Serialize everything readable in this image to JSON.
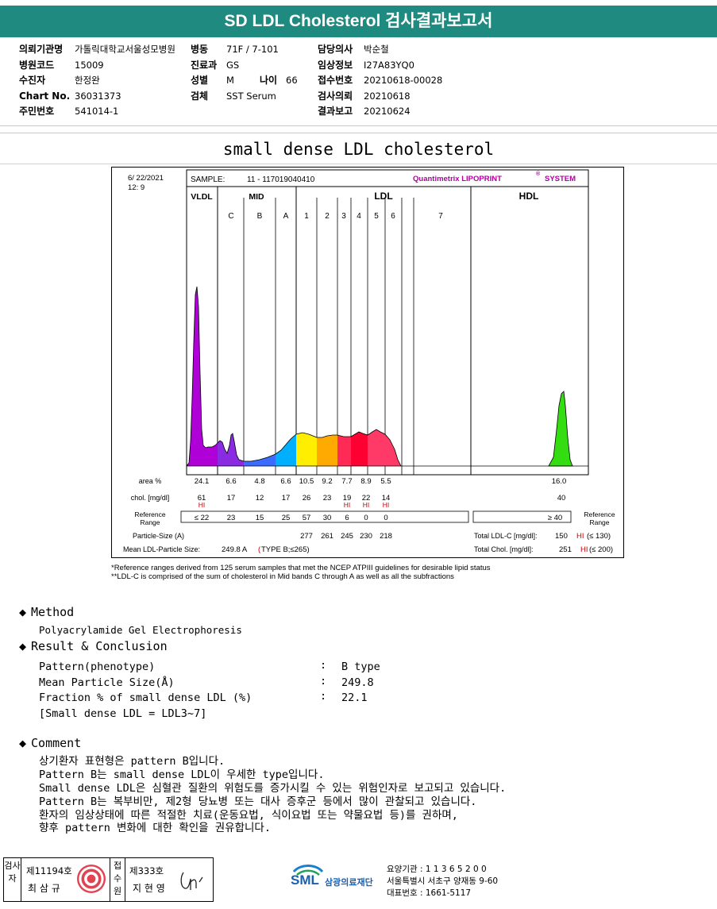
{
  "header": {
    "title": "SD LDL Cholesterol 검사결과보고서"
  },
  "info": {
    "col1": [
      {
        "label": "의뢰기관명",
        "value": "가톨릭대학교서울성모병원"
      },
      {
        "label": "병원코드",
        "value": "15009"
      },
      {
        "label": "수진자",
        "value": "한정완"
      },
      {
        "label": "Chart No.",
        "value": "36031373"
      },
      {
        "label": "주민번호",
        "value": "541014-1"
      }
    ],
    "col2": [
      {
        "label": "병동",
        "value": "71F / 7-101"
      },
      {
        "label": "진료과",
        "value": "GS"
      },
      {
        "label": "성별",
        "value": "M"
      },
      {
        "label": "검체",
        "value": "SST Serum"
      }
    ],
    "age_label": "나이",
    "age_value": "66",
    "col3": [
      {
        "label": "담당의사",
        "value": "박순철"
      },
      {
        "label": "임상정보",
        "value": "I27A83YQ0"
      },
      {
        "label": "접수번호",
        "value": "20210618-00028"
      },
      {
        "label": "검사의뢰",
        "value": "20210618"
      },
      {
        "label": "결과보고",
        "value": "20210624"
      }
    ]
  },
  "subtitle": "small dense LDL cholesterol",
  "chart_data": {
    "type": "area",
    "date": "6/ 22/2021",
    "time": "12: 9",
    "sample_label": "SAMPLE:",
    "sample_id": "11 - 117019040410",
    "brand": "Quantimetrix LIPOPRINT",
    "brand_mark": "®",
    "brand_suffix": "SYSTEM",
    "groups": [
      "VLDL",
      "MID",
      "LDL",
      "HDL"
    ],
    "bands": [
      "C",
      "B",
      "A",
      "1",
      "2",
      "3",
      "4",
      "5",
      "6",
      "7"
    ],
    "rows": {
      "area_label": "area %",
      "area_values": [
        "24.1",
        "6.6",
        "4.8",
        "6.6",
        "10.5",
        "9.2",
        "7.7",
        "8.9",
        "5.5"
      ],
      "hdl_area": "16.0",
      "chol_label": "chol. [mg/dl]",
      "chol_values": [
        "61",
        "17",
        "12",
        "17",
        "26",
        "23",
        "19",
        "22",
        "14"
      ],
      "hdl_chol": "40",
      "hi_flags": [
        "HI",
        "",
        "",
        "",
        "",
        "",
        "HI",
        "HI",
        "HI"
      ],
      "ref_label_1": "Reference",
      "ref_label_2": "Range",
      "ref_values": [
        "≤ 22",
        "23",
        "15",
        "25",
        "57",
        "30",
        "6",
        "0",
        "0"
      ],
      "hdl_ref": "≥ 40",
      "ref_right_1": "Reference",
      "ref_right_2": "Range",
      "particle_label": "Particle-Size (A)",
      "particle_values": [
        "277",
        "261",
        "245",
        "230",
        "218"
      ],
      "mean_label": "Mean LDL-Particle Size:",
      "mean_value": "249.8 A",
      "mean_type": "TYPE B;≤265)",
      "mean_type_prefix": "(",
      "total_ldl_label": "Total LDL-C [mg/dl]:",
      "total_ldl_value": "150",
      "total_ldl_flag": "HI",
      "total_ldl_ref": "(≤ 130)",
      "total_chol_label": "Total Chol. [mg/dl]:",
      "total_chol_value": "251",
      "total_chol_flag": "HI",
      "total_chol_ref": "(≤ 200)"
    },
    "colors": {
      "vldl": "#b000d8",
      "mid_c": "#8a2be2",
      "mid_b": "#3a6cff",
      "mid_a": "#00b0ff",
      "ldl1": "#ffee00",
      "ldl2": "#ffaa00",
      "ldl3": "#ff2a55",
      "ldl4": "#ff0033",
      "ldl5": "#ff3a66",
      "hdl": "#33dd11",
      "brand": "#b000a0",
      "hi": "#cc0000"
    }
  },
  "footnotes": [
    "*Reference ranges derived from 125 serum samples that met the NCEP ATPIII guidelines for desirable lipid status",
    "**LDL-C is comprised of the sum of cholesterol in Mid bands C through A as well as all the subfractions"
  ],
  "method": {
    "heading": "Method",
    "text": "Polyacrylamide Gel Electrophoresis"
  },
  "result": {
    "heading": "Result & Conclusion",
    "items": [
      {
        "label": "Pattern(phenotype)",
        "value": "B type"
      },
      {
        "label": "Mean Particle Size(Å)",
        "value": "249.8"
      },
      {
        "label": "Fraction % of small dense LDL (%)",
        "value": "22.1"
      }
    ],
    "note": "[Small dense LDL = LDL3~7]",
    "colon": ":"
  },
  "comment": {
    "heading": "Comment",
    "lines": [
      "상기환자 표현형은 pattern B입니다.",
      "Pattern B는 small dense LDL이 우세한 type입니다.",
      "Small dense LDL은 심혈관 질환의 위험도를 증가시킬 수 있는 위험인자로 보고되고 있습니다.",
      "Pattern B는 복부비만, 제2형 당뇨병 또는 대사 증후군 등에서 많이 관찰되고 있습니다.",
      "환자의 임상상태에 따른 적절한 치료(운동요법, 식이요법 또는 약물요법 등)를 권하며,",
      "향후 pattern 변화에 대한 확인을 권유합니다."
    ]
  },
  "signature": {
    "box1_label": "검사자",
    "box1_no": "제11194호",
    "box1_name": "최 삼 규",
    "box2_label": "접수원",
    "box2_no": "제333호",
    "box2_name": "지 현 영"
  },
  "footer": {
    "logo_text": "SML",
    "org_name": "삼광의료재단",
    "line1": "요양기관 : 1 1 3 6 5 2 0 0",
    "line2": "서울특별시 서초구 양재동 9-60",
    "line3": "대표번호 : 1661-5117"
  }
}
